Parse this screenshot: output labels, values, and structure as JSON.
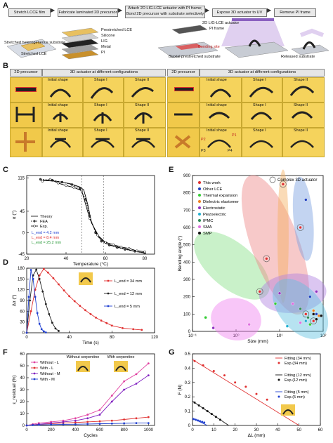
{
  "panel_a": {
    "letter": "A",
    "steps": [
      "Stretch LCCE film",
      "Fabricate laminated 2D precursor",
      "Attach 2D LIG-LCE actuator with PI frame; Bond 2D precursor with substrate selectively",
      "Expose 3D actuator to UV",
      "Remove PI frame"
    ],
    "labels": {
      "stretched_substrate": "Stretched heterogeneous substrate",
      "stretched_lce": "Stretched LCE",
      "layers": [
        "Prestretched LCE",
        "Silicone",
        "LIG",
        "Metal",
        "PI"
      ],
      "actuator": "2D LIG-LCE actuator",
      "pi_frame": "PI frame",
      "bonding_site": "Bonding site",
      "biaxial": "Biaxial prestretched substrate",
      "released": "Released substrate"
    }
  },
  "panel_b": {
    "letter": "B",
    "headers": [
      "2D precursor",
      "3D actuator at different configurations",
      "2D precursor",
      "3D actuator at different configurations"
    ],
    "left_rows": [
      [
        "Initial shape",
        "Shape I",
        "Shape II"
      ],
      [
        "Initial shape",
        "Shape I",
        "Shape II"
      ],
      [
        "Initial shape",
        "Shape I",
        "Shape II"
      ]
    ],
    "right_rows": [
      [
        "Initial shape",
        "Shape I",
        "Shape II"
      ],
      [
        "Initial shape",
        "Shape I",
        "Shape II"
      ],
      [
        "Initial shape",
        "Shape I",
        "Shape II"
      ]
    ],
    "point_labels": [
      "P1",
      "P2",
      "P3",
      "P4"
    ]
  },
  "panel_c": {
    "letter": "C"
  },
  "panel_d": {
    "letter": "D"
  },
  "panel_e": {
    "letter": "E"
  },
  "panel_f": {
    "letter": "F"
  },
  "panel_g": {
    "letter": "G"
  },
  "chart_data": [
    {
      "id": "C",
      "type": "line",
      "xlabel": "Temperature (°C)",
      "ylabel": "α (°)",
      "xlim": [
        20,
        85
      ],
      "ylim": [
        -45,
        120
      ],
      "xticks": [
        20,
        40,
        60,
        80
      ],
      "yticks": [
        -45,
        0,
        45,
        115
      ],
      "legend": [
        "Theory",
        "FEA",
        "Exp."
      ],
      "lend_labels": [
        "L_end = 4.2 mm",
        "L_end = 8.4 mm",
        "L_end = 25.2 mm"
      ],
      "lend_colors": [
        "#1f3fd0",
        "#e03030",
        "#2a9a3a"
      ],
      "series": [
        {
          "name": "Theory",
          "x": [
            27,
            35,
            42,
            47,
            49,
            51,
            53,
            57,
            60,
            64,
            68,
            72,
            76,
            80
          ],
          "y": [
            110,
            108,
            103,
            96,
            90,
            60,
            20,
            -10,
            -22,
            -28,
            -32,
            -36,
            -40,
            -42
          ]
        },
        {
          "name": "FEA",
          "x": [
            27,
            33,
            38,
            43,
            47,
            50,
            52,
            55,
            58,
            62,
            66,
            70,
            75,
            80
          ],
          "y": [
            112,
            110,
            106,
            101,
            93,
            70,
            35,
            0,
            -18,
            -26,
            -31,
            -35,
            -39,
            -43
          ]
        },
        {
          "name": "Exp.",
          "x": [
            28,
            32,
            36,
            40,
            44,
            48,
            52,
            56,
            60,
            64,
            68,
            72,
            76,
            80
          ],
          "y": [
            108,
            112,
            104,
            99,
            95,
            88,
            30,
            -5,
            -20,
            -25,
            -30,
            -33,
            -38,
            -40
          ]
        }
      ]
    },
    {
      "id": "D",
      "type": "line",
      "xlabel": "Time (s)",
      "ylabel": "Δα (°)",
      "xlim": [
        0,
        120
      ],
      "ylim": [
        0,
        180
      ],
      "xticks": [
        0,
        40,
        80,
        120
      ],
      "yticks": [
        0,
        30,
        60,
        90,
        120,
        150,
        180
      ],
      "series": [
        {
          "name": "L_end = 34 mm",
          "color": "#e03030",
          "x": [
            0,
            4,
            8,
            12,
            16,
            20,
            25,
            30,
            35,
            40,
            45,
            50,
            55,
            60,
            65,
            70,
            75,
            80,
            90,
            100,
            108
          ],
          "y": [
            0,
            60,
            120,
            160,
            178,
            168,
            152,
            135,
            118,
            102,
            88,
            75,
            63,
            52,
            42,
            34,
            27,
            20,
            13,
            10,
            8
          ]
        },
        {
          "name": "L_end = 12 mm",
          "color": "#222222",
          "x": [
            0,
            3,
            6,
            9,
            12,
            15,
            18,
            21,
            24,
            27,
            30
          ],
          "y": [
            0,
            90,
            160,
            176,
            150,
            115,
            80,
            52,
            28,
            12,
            5
          ]
        },
        {
          "name": "L_end = 5 mm",
          "color": "#1f3fd0",
          "x": [
            0,
            2,
            4,
            6,
            8,
            10,
            12,
            14,
            16,
            18
          ],
          "y": [
            0,
            100,
            175,
            150,
            100,
            55,
            25,
            10,
            4,
            1
          ]
        }
      ]
    },
    {
      "id": "E",
      "type": "scatter",
      "xlabel": "Size (mm)",
      "ylabel": "Bending angle (°)",
      "xscale": "log",
      "xlim": [
        0.1,
        100
      ],
      "ylim": [
        0,
        900
      ],
      "xticks": [
        0.1,
        1,
        10,
        100
      ],
      "yticks": [
        0,
        100,
        200,
        300,
        400,
        500,
        600,
        700,
        800,
        900
      ],
      "legend_title": "Complex 3D actuator",
      "series": [
        {
          "name": "This work",
          "color": "#e03030",
          "points": [
            [
              12,
              850
            ],
            [
              30,
              600
            ],
            [
              5,
              420
            ],
            [
              3.5,
              230
            ],
            [
              40,
              100
            ],
            [
              60,
              60
            ]
          ]
        },
        {
          "name": "Other LCE",
          "color": "#2040c0",
          "points": [
            [
              40,
              760
            ],
            [
              50,
              200
            ],
            [
              70,
              100
            ]
          ]
        },
        {
          "name": "Thermal expansion",
          "color": "#33cc33",
          "points": [
            [
              0.2,
              80
            ],
            [
              50,
              40
            ],
            [
              8,
              160
            ]
          ]
        },
        {
          "name": "Dielectric elastomer",
          "color": "#f08020",
          "points": [
            [
              60,
              120
            ],
            [
              80,
              90
            ]
          ]
        },
        {
          "name": "Electrostatic",
          "color": "#9030c0",
          "points": [
            [
              0.3,
              20
            ],
            [
              10,
              220
            ],
            [
              70,
              230
            ]
          ]
        },
        {
          "name": "Piezoelectric",
          "color": "#20b0d0",
          "points": [
            [
              15,
              30
            ],
            [
              40,
              60
            ]
          ]
        },
        {
          "name": "IPMC",
          "color": "#2e8b57",
          "points": [
            [
              30,
              130
            ],
            [
              45,
              80
            ]
          ]
        },
        {
          "name": "SMA",
          "color": "#e070e0",
          "points": [
            [
              2,
              40
            ],
            [
              20,
              160
            ],
            [
              30,
              50
            ]
          ]
        },
        {
          "name": "SMP",
          "color": "#111111",
          "points": [
            [
              60,
              100
            ],
            [
              90,
              90
            ],
            [
              70,
              70
            ]
          ]
        }
      ]
    },
    {
      "id": "F",
      "type": "line",
      "xlabel": "Cycles",
      "ylabel": "ε_residual (%)",
      "xlim": [
        0,
        1050
      ],
      "ylim": [
        0,
        60
      ],
      "xticks": [
        0,
        200,
        400,
        600,
        800,
        1000
      ],
      "yticks": [
        0,
        10,
        20,
        30,
        40,
        50,
        60
      ],
      "annotations": [
        "Without serpentine",
        "With serpentine"
      ],
      "series": [
        {
          "name": "Without - L",
          "color": "#e040a0",
          "x": [
            0,
            50,
            100,
            200,
            300,
            400,
            500,
            600,
            700,
            800,
            900,
            1000
          ],
          "y": [
            0,
            1,
            2,
            3,
            4,
            6,
            9,
            13,
            25,
            37,
            43,
            52
          ]
        },
        {
          "name": "With - L",
          "color": "#e03030",
          "x": [
            0,
            50,
            100,
            200,
            300,
            400,
            500,
            600,
            700,
            800,
            900,
            1000
          ],
          "y": [
            0,
            0.5,
            1,
            1.5,
            2,
            2.5,
            3,
            3.5,
            4,
            5,
            6,
            7
          ]
        },
        {
          "name": "Without - M",
          "color": "#8020c0",
          "x": [
            0,
            50,
            100,
            200,
            300,
            400,
            500,
            600,
            700,
            800,
            900,
            1000
          ],
          "y": [
            0,
            0.5,
            1,
            2,
            3,
            4,
            6,
            9,
            20,
            30,
            35,
            42
          ]
        },
        {
          "name": "With - M",
          "color": "#2040d0",
          "x": [
            0,
            50,
            100,
            200,
            300,
            400,
            500,
            600,
            700,
            800,
            900,
            1000
          ],
          "y": [
            0,
            0.3,
            0.5,
            0.7,
            0.9,
            1,
            1.2,
            1.4,
            1.6,
            1.8,
            2,
            2
          ]
        }
      ]
    },
    {
      "id": "G",
      "type": "scatter",
      "xlabel": "ΔL (mm)",
      "ylabel": "F (N)",
      "xlim": [
        0,
        60
      ],
      "ylim": [
        0,
        0.5
      ],
      "xticks": [
        0,
        10,
        20,
        30,
        40,
        50,
        60
      ],
      "yticks": [
        0,
        0.1,
        0.2,
        0.3,
        0.4,
        0.5
      ],
      "legend": [
        "Fitting (34 mm)",
        "Exp.(34 mm)",
        "Fitting (12 mm)",
        "Exp.(12 mm)",
        "Fitting (5 mm)",
        "Exp.(5 mm)"
      ],
      "series": [
        {
          "name": "Exp.(34 mm)",
          "color": "#e03030",
          "x": [
            1,
            5,
            10,
            15,
            20,
            25,
            30,
            35
          ],
          "y": [
            0.45,
            0.42,
            0.38,
            0.35,
            0.3,
            0.27,
            0.22,
            0.18
          ],
          "fit": [
            [
              0,
              0.46
            ],
            [
              50,
              0
            ]
          ]
        },
        {
          "name": "Exp.(12 mm)",
          "color": "#111111",
          "x": [
            1,
            3,
            5,
            7,
            9,
            11,
            13
          ],
          "y": [
            0.16,
            0.14,
            0.12,
            0.1,
            0.08,
            0.06,
            0.04
          ],
          "fit": [
            [
              0,
              0.17
            ],
            [
              17,
              0
            ]
          ]
        },
        {
          "name": "Exp.(5 mm)",
          "color": "#2040d0",
          "x": [
            0.5,
            1.5,
            2.5,
            3.5,
            4.5,
            5.5
          ],
          "y": [
            0.045,
            0.04,
            0.035,
            0.03,
            0.025,
            0.02
          ],
          "fit": [
            [
              0,
              0.05
            ],
            [
              7,
              0
            ]
          ]
        }
      ]
    }
  ]
}
